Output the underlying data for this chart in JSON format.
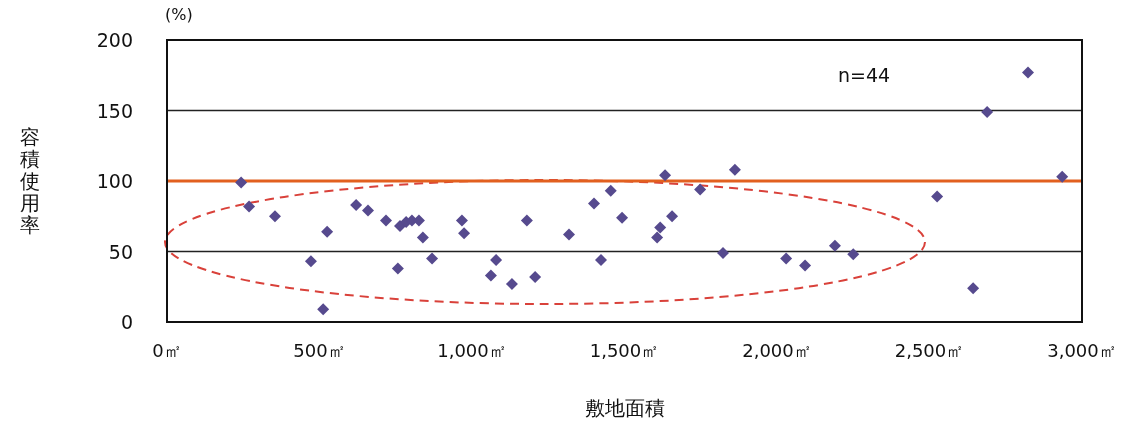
{
  "chart_data": {
    "type": "scatter",
    "xlabel": "敷地面積",
    "ylabel": "容積使用率",
    "annotations": [
      "(%)",
      "n=44"
    ],
    "x": [
      243,
      269,
      354,
      472,
      525,
      512,
      620,
      659,
      718,
      764,
      784,
      803,
      826,
      839,
      757,
      869,
      967,
      974,
      1079,
      1062,
      1131,
      1180,
      1207,
      1318,
      1400,
      1455,
      1423,
      1492,
      1633,
      1617,
      1607,
      1656,
      1748,
      1862,
      1823,
      2030,
      2092,
      2190,
      2250,
      2525,
      2643,
      2689,
      2823,
      2935
    ],
    "values": [
      99,
      82,
      75,
      43,
      64,
      9,
      83,
      79,
      72,
      68,
      71,
      72,
      72,
      60,
      38,
      45,
      72,
      63,
      44,
      33,
      27,
      72,
      32,
      62,
      84,
      93,
      44,
      74,
      104,
      67,
      60,
      75,
      94,
      108,
      49,
      45,
      40,
      54,
      48,
      89,
      24,
      149,
      177,
      103
    ],
    "color": "#564a8e",
    "marker": "diamond",
    "grid": "y",
    "xlim": [
      0,
      3000
    ],
    "ylim": [
      0,
      200
    ],
    "xticks": [
      {
        "value": 0,
        "label": "0㎡"
      },
      {
        "value": 500,
        "label": "500㎡"
      },
      {
        "value": 1000,
        "label": "1,000㎡"
      },
      {
        "value": 1500,
        "label": "1,500㎡"
      },
      {
        "value": 2000,
        "label": "2,000㎡"
      },
      {
        "value": 2500,
        "label": "2,500㎡"
      },
      {
        "value": 3000,
        "label": "3,000㎡"
      }
    ],
    "yticks": [
      0,
      50,
      100,
      150,
      200
    ],
    "ref_lines": [
      {
        "axis": "y",
        "value": 100,
        "color": "#e2601f",
        "line_style": "solid"
      }
    ]
  }
}
